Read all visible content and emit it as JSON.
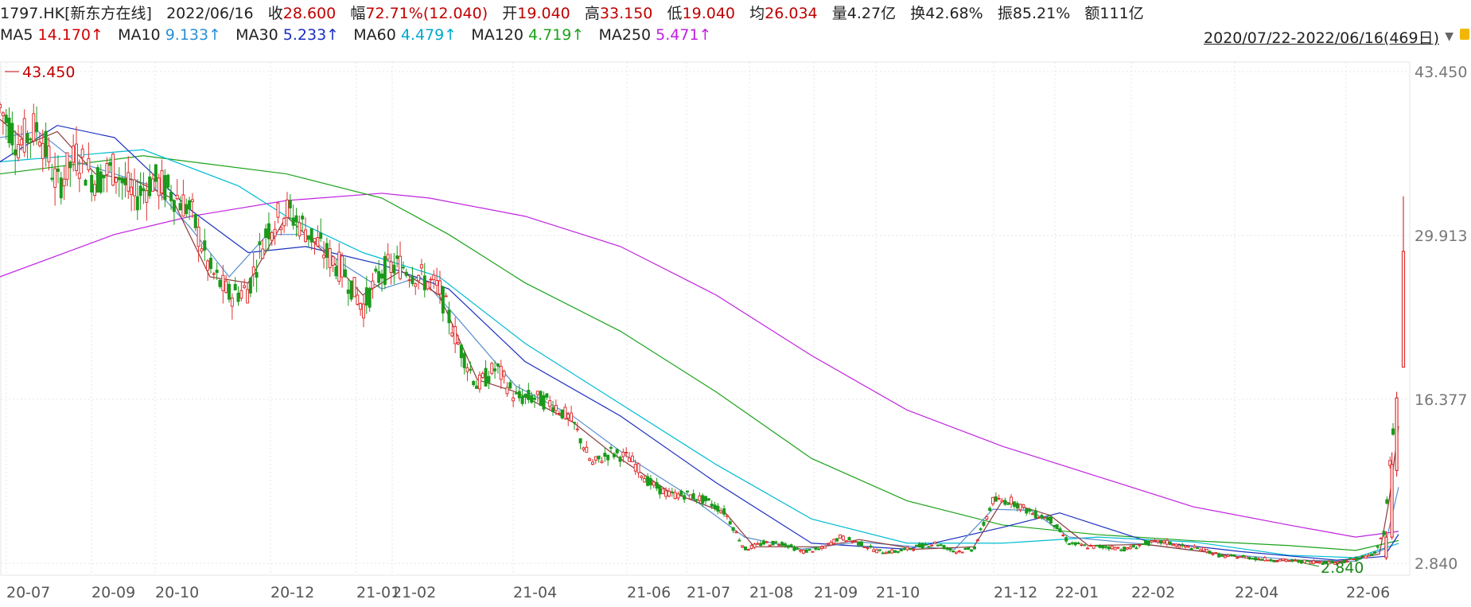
{
  "header": {
    "code": "1797.HK[新东方在线]",
    "date": "2022/06/16",
    "close_label": "收",
    "close": "28.600",
    "change_label": "幅",
    "change": "72.71%(12.040)",
    "open_label": "开",
    "open": "19.040",
    "high_label": "高",
    "high": "33.150",
    "low_label": "低",
    "low": "19.040",
    "avg_label": "均",
    "avg": "26.034",
    "volume_label": "量",
    "volume": "4.27亿",
    "turnover_label": "换",
    "turnover": "42.68%",
    "amplitude_label": "振",
    "amplitude": "85.21%",
    "amount_label": "额",
    "amount": "111亿"
  },
  "ma": [
    {
      "label": "MA5",
      "value": "14.170↑",
      "color": "#d00000"
    },
    {
      "label": "MA10",
      "value": "9.133↑",
      "color": "#2b8fd6"
    },
    {
      "label": "MA30",
      "value": "5.233↑",
      "color": "#1a2fbf"
    },
    {
      "label": "MA60",
      "value": "4.479↑",
      "color": "#00bcd4"
    },
    {
      "label": "MA120",
      "value": "4.719↑",
      "color": "#1aa31a"
    },
    {
      "label": "MA250",
      "value": "5.471↑",
      "color": "#c020e0"
    }
  ],
  "range_label": "2020/07/22-2022/06/16(469日)",
  "chart_data": {
    "type": "candlestick",
    "ylim": [
      2.84,
      43.45
    ],
    "yticks": [
      "43.450",
      "29.913",
      "16.377",
      "2.840"
    ],
    "xticks": [
      "20-07",
      "20-09",
      "20-10",
      "20-12",
      "21-01",
      "21-02",
      "21-04",
      "21-06",
      "21-07",
      "21-08",
      "21-09",
      "21-10",
      "21-12",
      "22-01",
      "22-02",
      "22-04",
      "22-06"
    ],
    "max_label": "43.450",
    "min_label": "2.840",
    "price": [
      [
        0,
        40.5
      ],
      [
        20,
        37.5
      ],
      [
        40,
        39.0
      ],
      [
        60,
        34.0
      ],
      [
        80,
        36.5
      ],
      [
        100,
        34.5
      ],
      [
        120,
        35.5
      ],
      [
        140,
        33.0
      ],
      [
        160,
        34.5
      ],
      [
        180,
        33.5
      ],
      [
        200,
        32.0
      ],
      [
        220,
        27.0
      ],
      [
        240,
        25.0
      ],
      [
        260,
        25.5
      ],
      [
        280,
        30.5
      ],
      [
        300,
        32.0
      ],
      [
        320,
        30.5
      ],
      [
        340,
        28.5
      ],
      [
        360,
        27.0
      ],
      [
        380,
        24.0
      ],
      [
        400,
        27.0
      ],
      [
        420,
        27.5
      ],
      [
        440,
        26.5
      ],
      [
        460,
        25.5
      ],
      [
        480,
        21.0
      ],
      [
        500,
        17.5
      ],
      [
        520,
        19.0
      ],
      [
        540,
        16.5
      ],
      [
        560,
        16.5
      ],
      [
        580,
        16.0
      ],
      [
        600,
        14.5
      ],
      [
        620,
        11.0
      ],
      [
        640,
        12.0
      ],
      [
        660,
        11.5
      ],
      [
        680,
        9.5
      ],
      [
        700,
        8.5
      ],
      [
        720,
        8.5
      ],
      [
        740,
        8.0
      ],
      [
        760,
        7.0
      ],
      [
        780,
        4.0
      ],
      [
        800,
        4.5
      ],
      [
        820,
        4.5
      ],
      [
        840,
        3.8
      ],
      [
        860,
        4.0
      ],
      [
        880,
        5.0
      ],
      [
        900,
        4.5
      ],
      [
        920,
        3.8
      ],
      [
        940,
        3.8
      ],
      [
        960,
        4.2
      ],
      [
        980,
        4.5
      ],
      [
        1000,
        3.8
      ],
      [
        1020,
        4.0
      ],
      [
        1040,
        8.0
      ],
      [
        1060,
        8.0
      ],
      [
        1080,
        7.0
      ],
      [
        1100,
        6.5
      ],
      [
        1120,
        4.5
      ],
      [
        1140,
        4.2
      ],
      [
        1160,
        4.2
      ],
      [
        1180,
        4.0
      ],
      [
        1200,
        4.5
      ],
      [
        1220,
        4.6
      ],
      [
        1240,
        4.2
      ],
      [
        1260,
        4.0
      ],
      [
        1280,
        3.4
      ],
      [
        1300,
        3.4
      ],
      [
        1320,
        3.2
      ],
      [
        1340,
        3.1
      ],
      [
        1360,
        3.0
      ],
      [
        1380,
        2.95
      ],
      [
        1400,
        2.9
      ],
      [
        1420,
        3.2
      ],
      [
        1440,
        3.6
      ],
      [
        1450,
        5.5
      ],
      [
        1456,
        11.0
      ],
      [
        1462,
        16.5
      ],
      [
        1465,
        28.6
      ]
    ],
    "ma250": [
      [
        0,
        26.5
      ],
      [
        120,
        30.0
      ],
      [
        200,
        31.5
      ],
      [
        300,
        32.8
      ],
      [
        400,
        33.4
      ],
      [
        450,
        33.0
      ],
      [
        550,
        31.5
      ],
      [
        650,
        29.0
      ],
      [
        750,
        25.0
      ],
      [
        850,
        20.0
      ],
      [
        950,
        15.5
      ],
      [
        1050,
        12.5
      ],
      [
        1150,
        10.0
      ],
      [
        1250,
        7.5
      ],
      [
        1350,
        6.0
      ],
      [
        1420,
        5.0
      ],
      [
        1465,
        5.47
      ]
    ],
    "ma120": [
      [
        0,
        35.0
      ],
      [
        150,
        36.5
      ],
      [
        300,
        35.0
      ],
      [
        400,
        33.0
      ],
      [
        470,
        30.0
      ],
      [
        550,
        26.0
      ],
      [
        650,
        22.0
      ],
      [
        750,
        17.0
      ],
      [
        850,
        11.5
      ],
      [
        950,
        8.0
      ],
      [
        1050,
        6.0
      ],
      [
        1150,
        5.2
      ],
      [
        1250,
        4.7
      ],
      [
        1350,
        4.3
      ],
      [
        1420,
        3.9
      ],
      [
        1465,
        4.72
      ]
    ],
    "ma60": [
      [
        0,
        36.0
      ],
      [
        150,
        37.0
      ],
      [
        250,
        34.0
      ],
      [
        300,
        31.5
      ],
      [
        380,
        28.5
      ],
      [
        460,
        26.5
      ],
      [
        550,
        21.0
      ],
      [
        650,
        16.0
      ],
      [
        750,
        11.0
      ],
      [
        850,
        6.5
      ],
      [
        950,
        4.5
      ],
      [
        1050,
        4.5
      ],
      [
        1150,
        5.0
      ],
      [
        1250,
        4.6
      ],
      [
        1350,
        3.5
      ],
      [
        1420,
        3.3
      ],
      [
        1465,
        4.48
      ]
    ],
    "ma30": [
      [
        0,
        36.0
      ],
      [
        60,
        39.0
      ],
      [
        120,
        38.0
      ],
      [
        200,
        32.0
      ],
      [
        260,
        28.5
      ],
      [
        320,
        29.0
      ],
      [
        400,
        27.5
      ],
      [
        470,
        25.5
      ],
      [
        550,
        19.5
      ],
      [
        650,
        15.0
      ],
      [
        750,
        9.5
      ],
      [
        850,
        4.5
      ],
      [
        950,
        4.0
      ],
      [
        1050,
        5.8
      ],
      [
        1110,
        7.0
      ],
      [
        1200,
        4.7
      ],
      [
        1300,
        3.8
      ],
      [
        1400,
        3.1
      ],
      [
        1450,
        3.4
      ],
      [
        1465,
        5.23
      ]
    ],
    "ma10": [
      [
        0,
        38.0
      ],
      [
        40,
        38.5
      ],
      [
        80,
        36.0
      ],
      [
        120,
        35.0
      ],
      [
        160,
        34.0
      ],
      [
        200,
        30.5
      ],
      [
        240,
        26.5
      ],
      [
        280,
        30.0
      ],
      [
        320,
        30.0
      ],
      [
        360,
        27.5
      ],
      [
        400,
        25.5
      ],
      [
        440,
        26.5
      ],
      [
        480,
        23.0
      ],
      [
        540,
        17.5
      ],
      [
        600,
        15.0
      ],
      [
        660,
        11.5
      ],
      [
        720,
        8.5
      ],
      [
        780,
        5.0
      ],
      [
        840,
        4.0
      ],
      [
        900,
        4.6
      ],
      [
        960,
        4.2
      ],
      [
        1000,
        4.0
      ],
      [
        1040,
        7.3
      ],
      [
        1080,
        7.2
      ],
      [
        1120,
        5.0
      ],
      [
        1200,
        4.4
      ],
      [
        1280,
        3.6
      ],
      [
        1360,
        3.1
      ],
      [
        1420,
        3.0
      ],
      [
        1450,
        4.0
      ],
      [
        1465,
        9.13
      ]
    ],
    "ma5": [
      [
        0,
        39.5
      ],
      [
        30,
        37.5
      ],
      [
        60,
        38.5
      ],
      [
        100,
        35.0
      ],
      [
        140,
        34.5
      ],
      [
        180,
        33.0
      ],
      [
        220,
        26.5
      ],
      [
        260,
        26.0
      ],
      [
        300,
        31.5
      ],
      [
        340,
        28.5
      ],
      [
        380,
        25.0
      ],
      [
        420,
        27.0
      ],
      [
        460,
        25.0
      ],
      [
        500,
        18.0
      ],
      [
        540,
        17.0
      ],
      [
        600,
        14.5
      ],
      [
        640,
        12.0
      ],
      [
        700,
        8.8
      ],
      [
        760,
        7.0
      ],
      [
        790,
        4.2
      ],
      [
        860,
        4.2
      ],
      [
        900,
        4.8
      ],
      [
        960,
        4.0
      ],
      [
        1020,
        4.2
      ],
      [
        1050,
        8.0
      ],
      [
        1100,
        6.8
      ],
      [
        1140,
        4.3
      ],
      [
        1200,
        4.4
      ],
      [
        1260,
        3.8
      ],
      [
        1320,
        3.1
      ],
      [
        1400,
        2.95
      ],
      [
        1445,
        3.6
      ],
      [
        1455,
        8.0
      ],
      [
        1465,
        14.17
      ]
    ]
  }
}
